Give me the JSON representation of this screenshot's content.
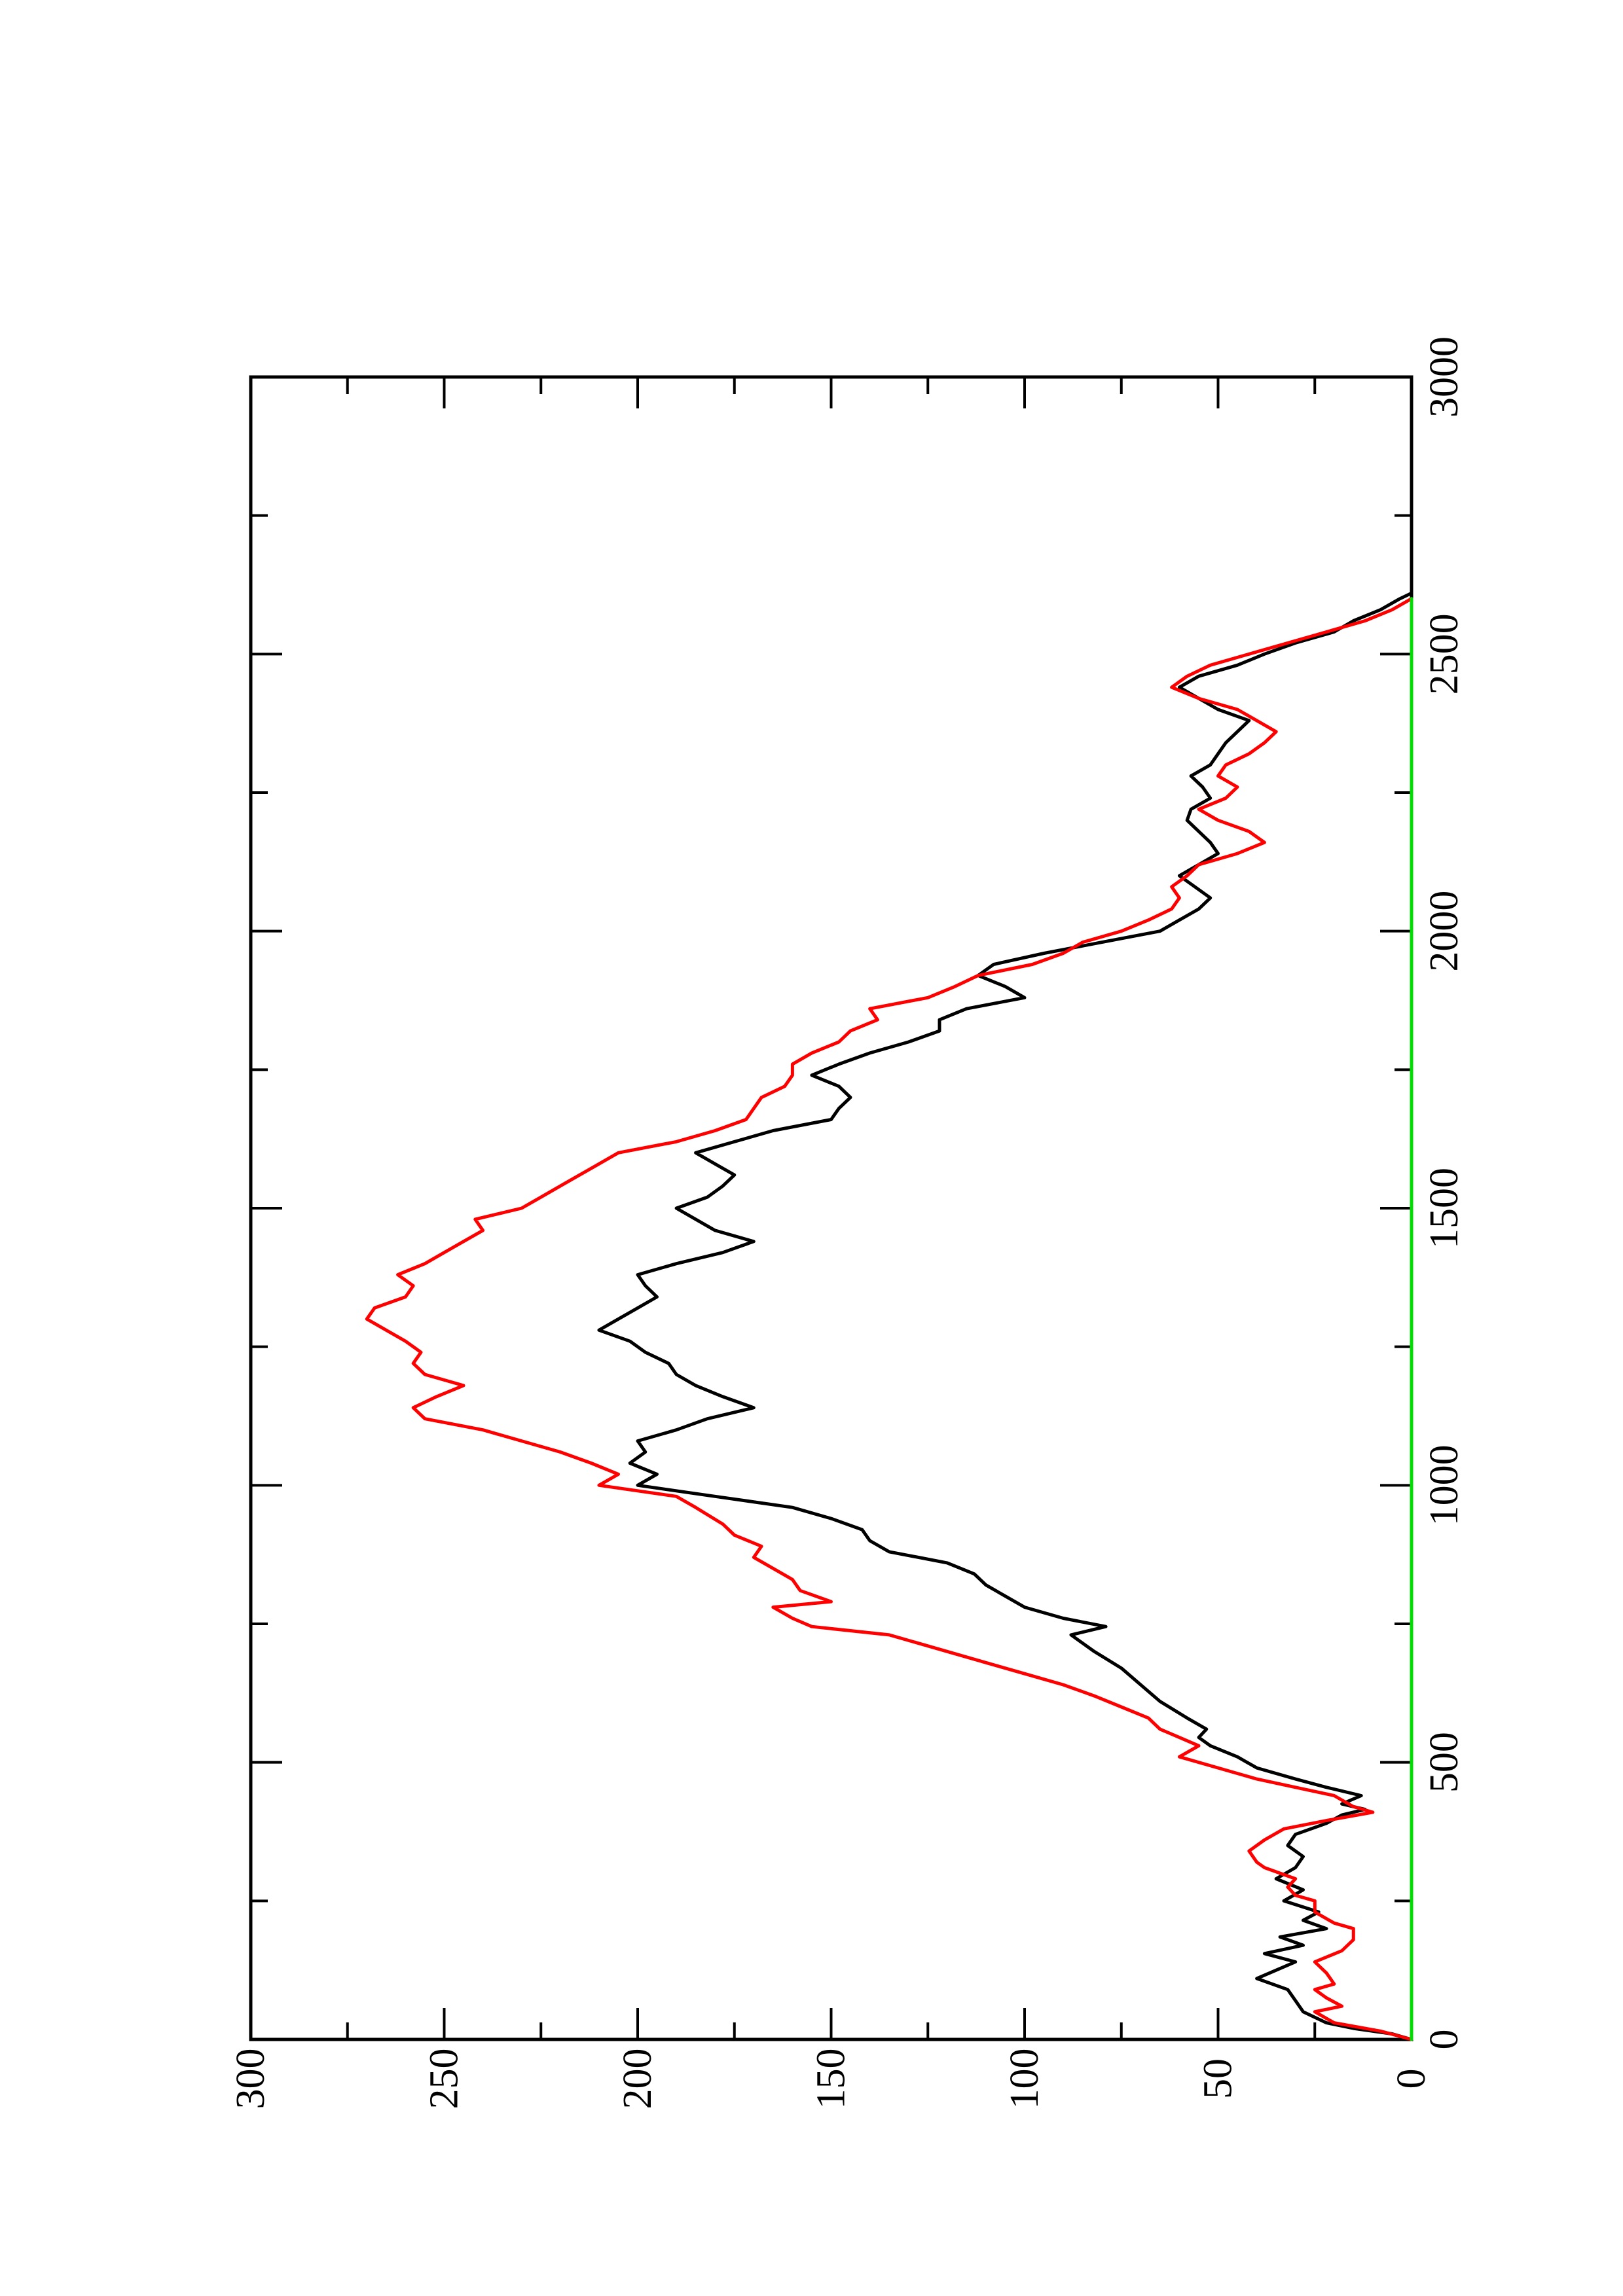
{
  "chart_data": {
    "type": "line",
    "orientation": "rotated-90-ccw",
    "title": "",
    "xlabel": "",
    "ylabel": "",
    "xlim": [
      0,
      3000
    ],
    "ylim": [
      0,
      300
    ],
    "x_ticks": [
      0,
      500,
      1000,
      1500,
      2000,
      2500,
      3000
    ],
    "x_minor_ticks": [
      250,
      750,
      1250,
      1750,
      2250,
      2750
    ],
    "y_ticks": [
      0,
      50,
      100,
      150,
      200,
      250,
      300
    ],
    "y_minor_ticks": [
      25,
      75,
      125,
      175,
      225,
      275
    ],
    "grid": false,
    "legend": "none",
    "series": [
      {
        "color": "#000000",
        "points": [
          [
            0,
            0
          ],
          [
            10,
            5
          ],
          [
            20,
            15
          ],
          [
            30,
            22
          ],
          [
            50,
            28
          ],
          [
            70,
            30
          ],
          [
            90,
            32
          ],
          [
            110,
            40
          ],
          [
            125,
            35
          ],
          [
            140,
            30
          ],
          [
            155,
            38
          ],
          [
            170,
            28
          ],
          [
            185,
            34
          ],
          [
            200,
            22
          ],
          [
            215,
            28
          ],
          [
            230,
            24
          ],
          [
            250,
            33
          ],
          [
            270,
            28
          ],
          [
            290,
            35
          ],
          [
            310,
            30
          ],
          [
            330,
            28
          ],
          [
            350,
            32
          ],
          [
            370,
            30
          ],
          [
            390,
            22
          ],
          [
            405,
            18
          ],
          [
            415,
            12
          ],
          [
            425,
            18
          ],
          [
            440,
            13
          ],
          [
            455,
            22
          ],
          [
            470,
            30
          ],
          [
            490,
            40
          ],
          [
            510,
            45
          ],
          [
            530,
            52
          ],
          [
            545,
            55
          ],
          [
            560,
            53
          ],
          [
            580,
            58
          ],
          [
            610,
            65
          ],
          [
            640,
            70
          ],
          [
            670,
            75
          ],
          [
            700,
            82
          ],
          [
            730,
            88
          ],
          [
            745,
            79
          ],
          [
            760,
            90
          ],
          [
            780,
            100
          ],
          [
            800,
            105
          ],
          [
            820,
            110
          ],
          [
            840,
            113
          ],
          [
            860,
            120
          ],
          [
            880,
            135
          ],
          [
            900,
            140
          ],
          [
            920,
            142
          ],
          [
            940,
            150
          ],
          [
            960,
            160
          ],
          [
            980,
            180
          ],
          [
            1000,
            200
          ],
          [
            1020,
            195
          ],
          [
            1040,
            202
          ],
          [
            1060,
            198
          ],
          [
            1080,
            200
          ],
          [
            1100,
            190
          ],
          [
            1120,
            182
          ],
          [
            1140,
            170
          ],
          [
            1160,
            178
          ],
          [
            1180,
            185
          ],
          [
            1200,
            190
          ],
          [
            1220,
            192
          ],
          [
            1240,
            198
          ],
          [
            1260,
            202
          ],
          [
            1280,
            210
          ],
          [
            1300,
            205
          ],
          [
            1320,
            200
          ],
          [
            1340,
            195
          ],
          [
            1360,
            198
          ],
          [
            1380,
            200
          ],
          [
            1400,
            190
          ],
          [
            1420,
            178
          ],
          [
            1440,
            170
          ],
          [
            1460,
            180
          ],
          [
            1480,
            185
          ],
          [
            1500,
            190
          ],
          [
            1520,
            182
          ],
          [
            1540,
            178
          ],
          [
            1560,
            175
          ],
          [
            1580,
            180
          ],
          [
            1600,
            185
          ],
          [
            1620,
            175
          ],
          [
            1640,
            165
          ],
          [
            1660,
            150
          ],
          [
            1680,
            148
          ],
          [
            1700,
            145
          ],
          [
            1720,
            148
          ],
          [
            1740,
            155
          ],
          [
            1760,
            148
          ],
          [
            1780,
            140
          ],
          [
            1800,
            130
          ],
          [
            1820,
            122
          ],
          [
            1840,
            122
          ],
          [
            1860,
            115
          ],
          [
            1880,
            100
          ],
          [
            1900,
            105
          ],
          [
            1920,
            112
          ],
          [
            1940,
            108
          ],
          [
            1960,
            95
          ],
          [
            1980,
            80
          ],
          [
            2000,
            65
          ],
          [
            2020,
            60
          ],
          [
            2040,
            55
          ],
          [
            2060,
            52
          ],
          [
            2080,
            56
          ],
          [
            2100,
            60
          ],
          [
            2120,
            55
          ],
          [
            2140,
            50
          ],
          [
            2160,
            52
          ],
          [
            2180,
            55
          ],
          [
            2200,
            58
          ],
          [
            2220,
            57
          ],
          [
            2240,
            52
          ],
          [
            2260,
            54
          ],
          [
            2280,
            57
          ],
          [
            2300,
            52
          ],
          [
            2320,
            50
          ],
          [
            2340,
            48
          ],
          [
            2360,
            45
          ],
          [
            2380,
            42
          ],
          [
            2400,
            50
          ],
          [
            2420,
            55
          ],
          [
            2440,
            60
          ],
          [
            2460,
            55
          ],
          [
            2480,
            45
          ],
          [
            2500,
            38
          ],
          [
            2520,
            30
          ],
          [
            2540,
            20
          ],
          [
            2560,
            15
          ],
          [
            2580,
            8
          ],
          [
            2600,
            3
          ],
          [
            2610,
            0
          ]
        ]
      },
      {
        "color": "#ff0000",
        "points": [
          [
            0,
            0
          ],
          [
            15,
            8
          ],
          [
            30,
            20
          ],
          [
            50,
            25
          ],
          [
            60,
            18
          ],
          [
            75,
            22
          ],
          [
            90,
            25
          ],
          [
            100,
            20
          ],
          [
            120,
            22
          ],
          [
            140,
            25
          ],
          [
            160,
            18
          ],
          [
            180,
            15
          ],
          [
            200,
            15
          ],
          [
            210,
            20
          ],
          [
            230,
            25
          ],
          [
            250,
            25
          ],
          [
            260,
            30
          ],
          [
            275,
            32
          ],
          [
            290,
            30
          ],
          [
            310,
            38
          ],
          [
            320,
            40
          ],
          [
            340,
            42
          ],
          [
            360,
            38
          ],
          [
            380,
            33
          ],
          [
            395,
            22
          ],
          [
            410,
            10
          ],
          [
            420,
            15
          ],
          [
            440,
            20
          ],
          [
            455,
            30
          ],
          [
            470,
            40
          ],
          [
            490,
            50
          ],
          [
            510,
            60
          ],
          [
            530,
            55
          ],
          [
            545,
            60
          ],
          [
            560,
            65
          ],
          [
            580,
            68
          ],
          [
            600,
            75
          ],
          [
            620,
            82
          ],
          [
            640,
            90
          ],
          [
            660,
            100
          ],
          [
            680,
            110
          ],
          [
            700,
            120
          ],
          [
            730,
            135
          ],
          [
            745,
            155
          ],
          [
            760,
            160
          ],
          [
            780,
            165
          ],
          [
            790,
            150
          ],
          [
            810,
            158
          ],
          [
            830,
            160
          ],
          [
            850,
            165
          ],
          [
            870,
            170
          ],
          [
            890,
            168
          ],
          [
            910,
            175
          ],
          [
            930,
            178
          ],
          [
            960,
            185
          ],
          [
            980,
            190
          ],
          [
            1000,
            210
          ],
          [
            1020,
            205
          ],
          [
            1040,
            212
          ],
          [
            1060,
            220
          ],
          [
            1080,
            230
          ],
          [
            1100,
            240
          ],
          [
            1120,
            255
          ],
          [
            1140,
            258
          ],
          [
            1160,
            252
          ],
          [
            1180,
            245
          ],
          [
            1200,
            255
          ],
          [
            1220,
            258
          ],
          [
            1240,
            256
          ],
          [
            1260,
            260
          ],
          [
            1280,
            265
          ],
          [
            1300,
            270
          ],
          [
            1320,
            268
          ],
          [
            1340,
            260
          ],
          [
            1360,
            258
          ],
          [
            1380,
            262
          ],
          [
            1400,
            255
          ],
          [
            1420,
            250
          ],
          [
            1440,
            245
          ],
          [
            1460,
            240
          ],
          [
            1480,
            242
          ],
          [
            1500,
            230
          ],
          [
            1520,
            225
          ],
          [
            1540,
            220
          ],
          [
            1560,
            215
          ],
          [
            1580,
            210
          ],
          [
            1600,
            205
          ],
          [
            1620,
            190
          ],
          [
            1640,
            180
          ],
          [
            1660,
            172
          ],
          [
            1680,
            170
          ],
          [
            1700,
            168
          ],
          [
            1720,
            162
          ],
          [
            1740,
            160
          ],
          [
            1760,
            160
          ],
          [
            1780,
            155
          ],
          [
            1800,
            148
          ],
          [
            1820,
            145
          ],
          [
            1840,
            138
          ],
          [
            1860,
            140
          ],
          [
            1880,
            125
          ],
          [
            1900,
            118
          ],
          [
            1920,
            112
          ],
          [
            1940,
            98
          ],
          [
            1960,
            90
          ],
          [
            1980,
            85
          ],
          [
            2000,
            75
          ],
          [
            2020,
            68
          ],
          [
            2040,
            62
          ],
          [
            2060,
            60
          ],
          [
            2080,
            62
          ],
          [
            2100,
            58
          ],
          [
            2120,
            55
          ],
          [
            2140,
            45
          ],
          [
            2160,
            38
          ],
          [
            2180,
            42
          ],
          [
            2200,
            50
          ],
          [
            2220,
            55
          ],
          [
            2240,
            48
          ],
          [
            2260,
            45
          ],
          [
            2280,
            50
          ],
          [
            2300,
            48
          ],
          [
            2320,
            42
          ],
          [
            2340,
            38
          ],
          [
            2360,
            35
          ],
          [
            2380,
            40
          ],
          [
            2400,
            45
          ],
          [
            2420,
            55
          ],
          [
            2440,
            62
          ],
          [
            2460,
            58
          ],
          [
            2480,
            52
          ],
          [
            2500,
            42
          ],
          [
            2520,
            32
          ],
          [
            2540,
            22
          ],
          [
            2560,
            12
          ],
          [
            2580,
            5
          ],
          [
            2600,
            0
          ]
        ]
      },
      {
        "color": "#00dd00",
        "points": [
          [
            0,
            0
          ],
          [
            200,
            0
          ],
          [
            400,
            0
          ],
          [
            600,
            0
          ],
          [
            800,
            0
          ],
          [
            1000,
            0
          ],
          [
            1200,
            0
          ],
          [
            1400,
            0
          ],
          [
            1600,
            0
          ],
          [
            1800,
            0
          ],
          [
            2000,
            0
          ],
          [
            2200,
            0
          ],
          [
            2400,
            0
          ],
          [
            2600,
            0
          ]
        ]
      }
    ]
  }
}
